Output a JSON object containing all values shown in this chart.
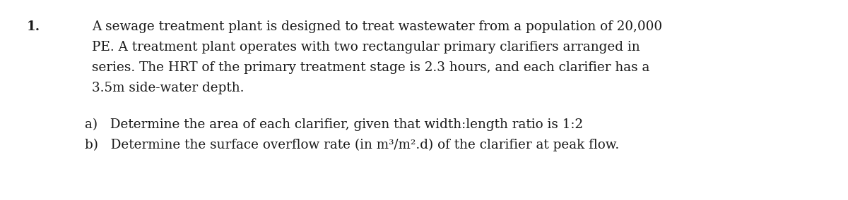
{
  "background_color": "#ffffff",
  "number_label": "1.",
  "font_color": "#1a1a1a",
  "font_family": "DejaVu Serif",
  "font_size": 13.2,
  "font_size_bold": 14.0,
  "number_label_bold": true,
  "paragraph_lines": [
    "A sewage treatment plant is designed to treat wastewater from a population of 20,000",
    "PE. A treatment plant operates with two rectangular primary clarifiers arranged in",
    "series. The HRT of the primary treatment stage is 2.3 hours, and each clarifier has a",
    "3.5m side-water depth."
  ],
  "sub_items": [
    "a)   Determine the area of each clarifier, given that width:length ratio is 1:2",
    "b)   Determine the surface overflow rate (in m³/m².d) of the clarifier at peak flow."
  ],
  "figsize": [
    12.0,
    2.84
  ],
  "dpi": 100
}
